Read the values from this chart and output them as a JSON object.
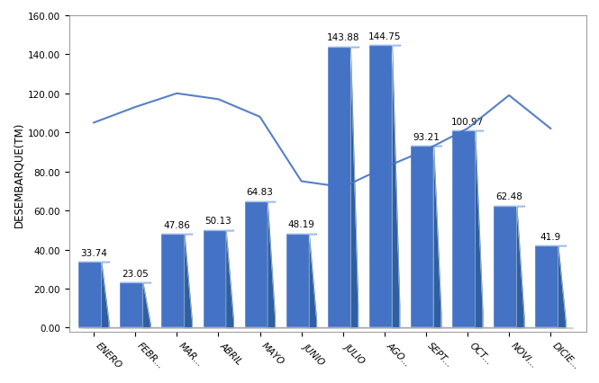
{
  "months": [
    "ENERO",
    "FEBR...",
    "MAR...",
    "ABRIL",
    "MAYO",
    "JUNIO",
    "JULIO",
    "AGO...",
    "SEPT...",
    "OCT...",
    "NOVI...",
    "DICIE..."
  ],
  "values": [
    33.74,
    23.05,
    47.86,
    50.13,
    64.83,
    48.19,
    143.88,
    144.75,
    93.21,
    100.97,
    62.48,
    41.9
  ],
  "bar_color_face": "#4472C4",
  "bar_color_dark": "#2E5FA3",
  "bar_color_top": "#5B8DD9",
  "line_color": "#4472C4",
  "line_values": [
    105,
    113,
    120,
    117,
    108,
    75,
    72,
    82,
    91,
    102,
    119,
    102
  ],
  "ylabel": "DESEMBARQUE(TM)",
  "ylim": [
    0,
    160
  ],
  "yticks": [
    0.0,
    20.0,
    40.0,
    60.0,
    80.0,
    100.0,
    120.0,
    140.0,
    160.0
  ],
  "background_color": "#ffffff",
  "label_fontsize": 7.5,
  "tick_fontsize": 7.5,
  "bar_width": 0.55,
  "depth": 0.18,
  "depth_scale": 0.08
}
